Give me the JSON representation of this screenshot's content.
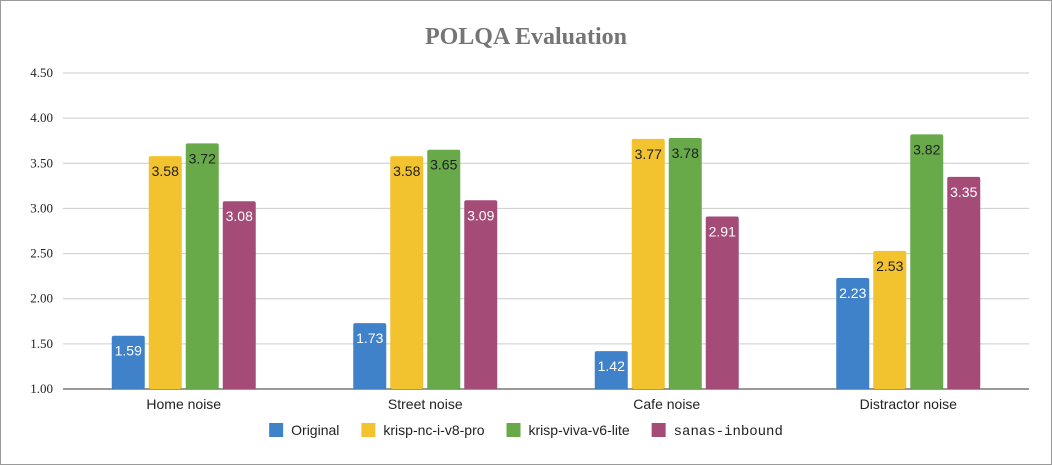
{
  "chart_data": {
    "type": "bar",
    "title": "POLQA Evaluation",
    "xlabel": "",
    "ylabel": "",
    "ylim": [
      1.0,
      4.5
    ],
    "yticks": [
      "1.00",
      "1.50",
      "2.00",
      "2.50",
      "3.00",
      "3.50",
      "4.00",
      "4.50"
    ],
    "ytick_values": [
      1.0,
      1.5,
      2.0,
      2.5,
      3.0,
      3.5,
      4.0,
      4.5
    ],
    "grid": true,
    "legend_position": "bottom",
    "categories": [
      "Home noise",
      "Street noise",
      "Cafe noise",
      "Distractor noise"
    ],
    "series": [
      {
        "name": "Original",
        "color": "#3f82c9",
        "label_color": "#ffffff",
        "values": [
          1.59,
          1.73,
          1.42,
          2.23
        ],
        "labels": [
          "1.59",
          "1.73",
          "1.42",
          "2.23"
        ]
      },
      {
        "name": "krisp-nc-i-v8-pro",
        "color": "#f3c22f",
        "label_color": "#222222",
        "values": [
          3.58,
          3.58,
          3.77,
          2.53
        ],
        "labels": [
          "3.58",
          "3.58",
          "3.77",
          "2.53"
        ]
      },
      {
        "name": "krisp-viva-v6-lite",
        "color": "#68a94a",
        "label_color": "#222222",
        "values": [
          3.72,
          3.65,
          3.78,
          3.82
        ],
        "labels": [
          "3.72",
          "3.65",
          "3.78",
          "3.82"
        ]
      },
      {
        "name": "sanas-inbound",
        "color": "#a54b78",
        "label_color": "#ffffff",
        "values": [
          3.08,
          3.09,
          2.91,
          3.35
        ],
        "labels": [
          "3.08",
          "3.09",
          "2.91",
          "3.35"
        ]
      }
    ]
  }
}
